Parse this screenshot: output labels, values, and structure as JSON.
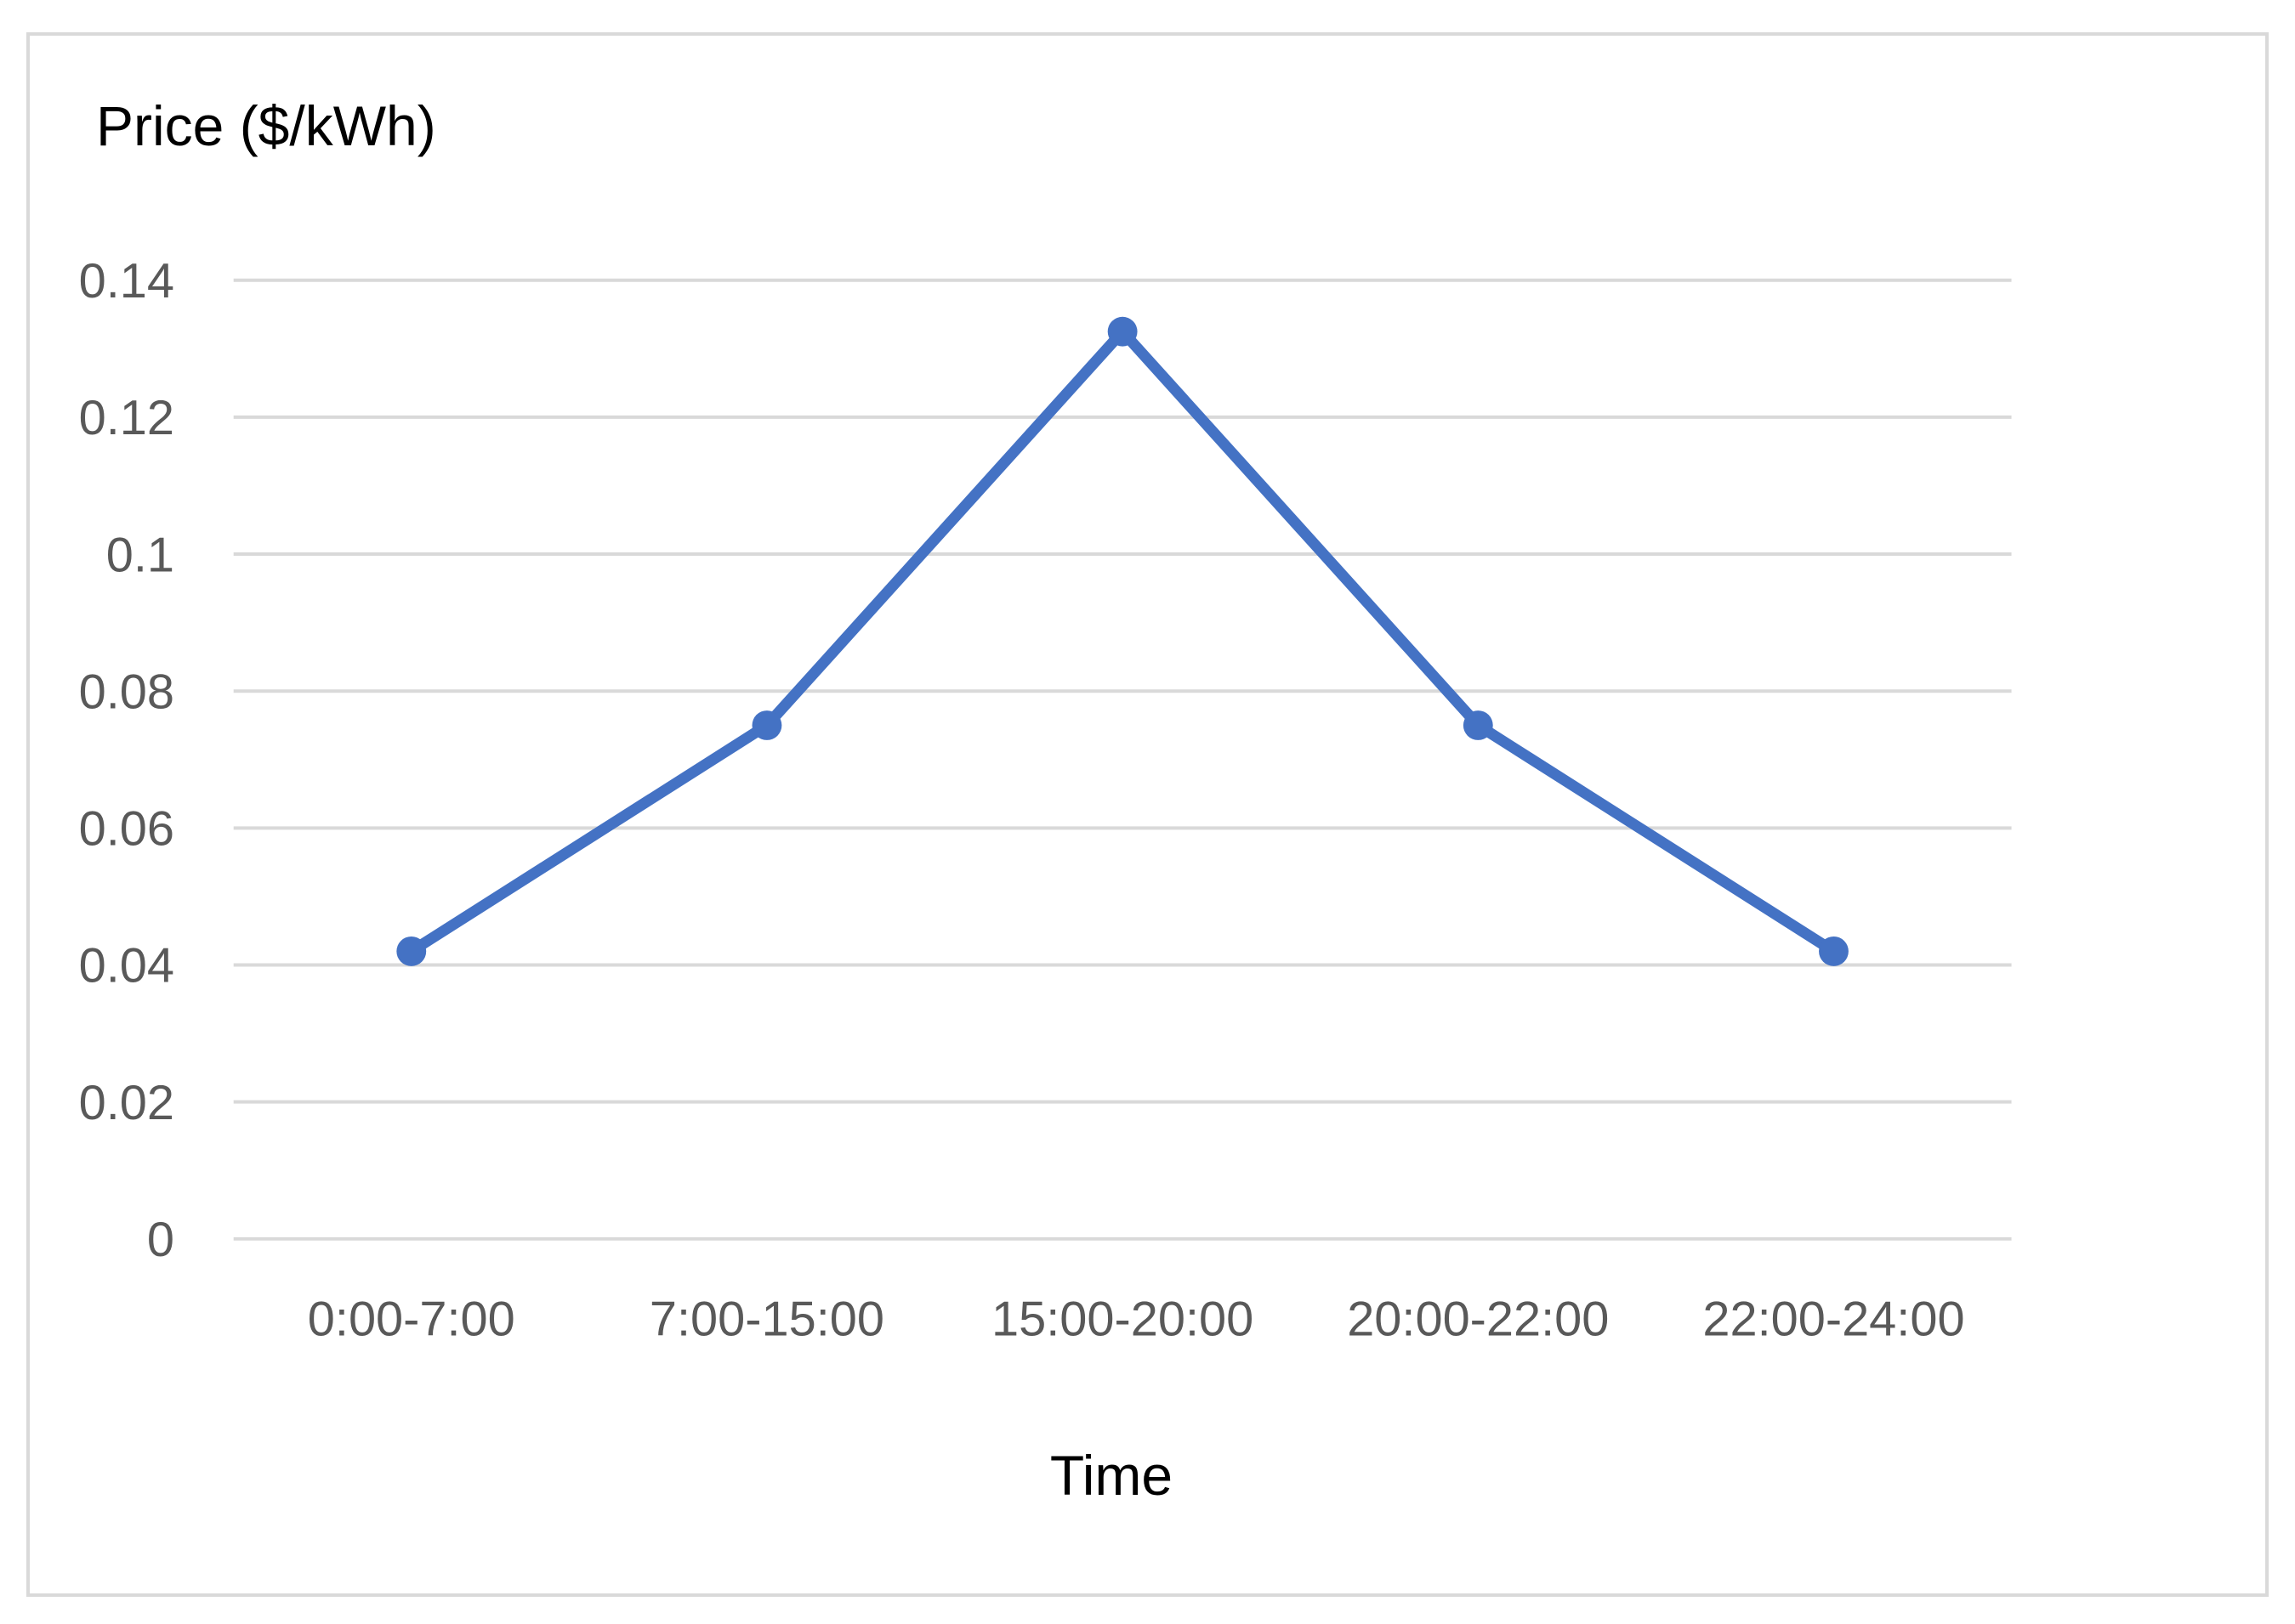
{
  "figure": {
    "y_axis_title": "Price ($/kWh)",
    "x_axis_title": "Time"
  },
  "chart_data": {
    "type": "line",
    "title": "",
    "ylabel": "Price ($/kWh)",
    "xlabel": "Time",
    "categories": [
      "0:00-7:00",
      "7:00-15:00",
      "15:00-20:00",
      "20:00-22:00",
      "22:00-24:00"
    ],
    "series": [
      {
        "name": "Price",
        "values": [
          0.042,
          0.075,
          0.1325,
          0.075,
          0.042
        ]
      }
    ],
    "ylim": [
      0,
      0.14
    ],
    "ytick_step": 0.02,
    "ytick_labels": [
      "0",
      "0.02",
      "0.04",
      "0.06",
      "0.08",
      "0.1",
      "0.12",
      "0.14"
    ],
    "grid": true,
    "legend_position": "none",
    "marker": "circle",
    "colors": {
      "line": "#4472C4",
      "marker": "#4472C4",
      "gridline": "#d9d9d9",
      "tick_label": "#595959",
      "axis_title": "#000000",
      "figure_border": "#d9d9d9",
      "background": "#ffffff"
    }
  }
}
